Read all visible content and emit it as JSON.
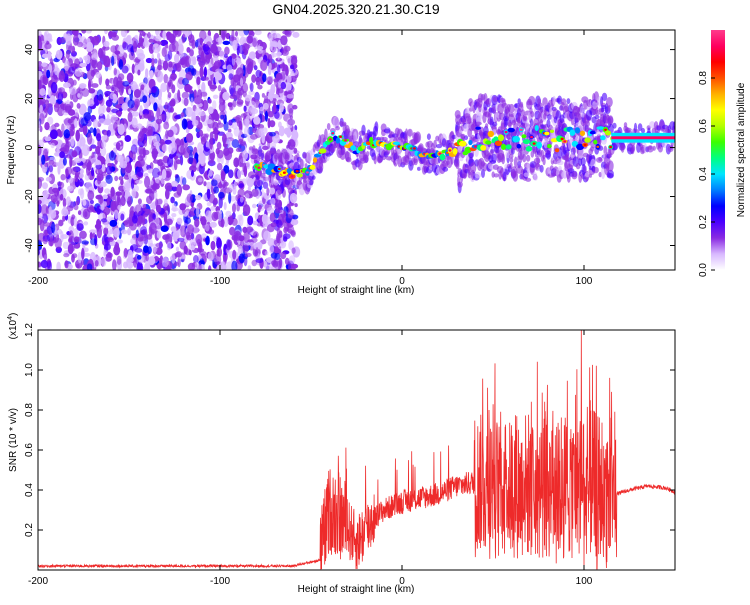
{
  "title": "GN04.2025.320.21.30.C19",
  "chart_data": [
    {
      "type": "heatmap",
      "name": "spectrogram",
      "xlabel": "Height of straight line (km)",
      "ylabel": "Frequency (Hz)",
      "xlim": [
        -200,
        150
      ],
      "ylim": [
        -50,
        48
      ],
      "xticks": [
        -200,
        -100,
        0,
        100
      ],
      "yticks": [
        -40,
        -20,
        0,
        20,
        40
      ],
      "colorbar": {
        "label": "Normalized spectral amplitude",
        "range": [
          0.0,
          1.0
        ],
        "ticks": [
          0.0,
          0.2,
          0.4,
          0.6,
          0.8
        ],
        "colors": [
          "#ffffff",
          "#d8b8ff",
          "#8a2be2",
          "#4b00ff",
          "#0000ff",
          "#0080ff",
          "#00e5ff",
          "#00ff80",
          "#3cff00",
          "#b4ff00",
          "#ffff00",
          "#ffb000",
          "#ff5000",
          "#ff0000",
          "#ff0060",
          "#ff3c8c"
        ]
      },
      "ridge": [
        [
          -78,
          -8
        ],
        [
          -70,
          -9
        ],
        [
          -60,
          -11
        ],
        [
          -52,
          -10
        ],
        [
          -46,
          -4
        ],
        [
          -42,
          2
        ],
        [
          -38,
          5
        ],
        [
          -30,
          2
        ],
        [
          -25,
          -2
        ],
        [
          -20,
          2
        ],
        [
          -10,
          2
        ],
        [
          0,
          0
        ],
        [
          10,
          -2
        ],
        [
          20,
          -3
        ],
        [
          30,
          -2
        ],
        [
          40,
          4
        ],
        [
          50,
          5
        ],
        [
          60,
          4
        ],
        [
          70,
          3
        ],
        [
          80,
          4
        ],
        [
          90,
          3
        ],
        [
          100,
          4
        ],
        [
          110,
          5
        ],
        [
          115,
          4
        ],
        [
          150,
          4
        ]
      ]
    },
    {
      "type": "line",
      "name": "snr",
      "xlabel": "Height of straight line (km)",
      "ylabel": "SNR (10 * v/v)",
      "multiplier": "(x10",
      "multiplier_exp": "4",
      "multiplier_close": ")",
      "xlim": [
        -200,
        150
      ],
      "ylim": [
        0,
        1.2
      ],
      "xticks": [
        -200,
        -100,
        0,
        100
      ],
      "yticks": [
        0.2,
        0.4,
        0.6,
        0.8,
        1.0,
        1.2
      ],
      "ytick_labels": [
        "0.2",
        "0.4",
        "0.6",
        "0.8",
        "1.0",
        "1.2"
      ],
      "color": "#ee2a2a",
      "envelope": [
        [
          -200,
          0.02
        ],
        [
          -150,
          0.02
        ],
        [
          -100,
          0.02
        ],
        [
          -60,
          0.02
        ],
        [
          -45,
          0.05
        ],
        [
          -40,
          0.28
        ],
        [
          -35,
          0.25
        ],
        [
          -30,
          0.2
        ],
        [
          -25,
          0.12
        ],
        [
          -20,
          0.18
        ],
        [
          -15,
          0.26
        ],
        [
          -10,
          0.3
        ],
        [
          0,
          0.34
        ],
        [
          10,
          0.36
        ],
        [
          20,
          0.38
        ],
        [
          30,
          0.42
        ],
        [
          40,
          0.44
        ],
        [
          50,
          0.42
        ],
        [
          60,
          0.4
        ],
        [
          70,
          0.4
        ],
        [
          80,
          0.38
        ],
        [
          90,
          0.36
        ],
        [
          100,
          0.34
        ],
        [
          110,
          0.3
        ],
        [
          118,
          0.38
        ],
        [
          125,
          0.4
        ],
        [
          135,
          0.42
        ],
        [
          145,
          0.41
        ],
        [
          150,
          0.39
        ]
      ]
    }
  ]
}
